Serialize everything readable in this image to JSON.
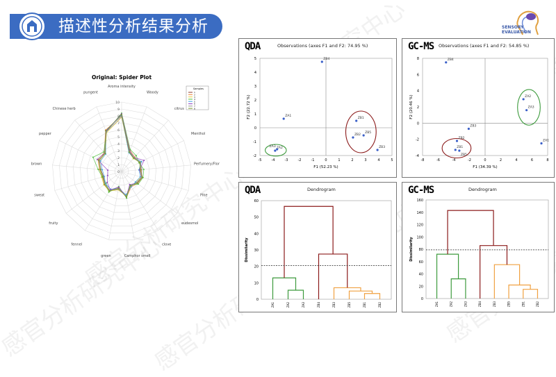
{
  "header": {
    "title": "描述性分析结果分析"
  },
  "brand": {
    "line1": "SENSORY",
    "line2": "EVALUATION"
  },
  "watermark": "感官分析研究中心",
  "colors": {
    "header": "#3b6cc2",
    "points": "#3a5fc8",
    "green": "#3c9a3c",
    "orange": "#f0a040",
    "darkred": "#8b1a1a"
  },
  "panels": {
    "qda_scatter": {
      "label": "QDA",
      "title": "Observations (axes F1 and F2: 74.95 %)"
    },
    "gcms_scatter": {
      "label": "GC-MS",
      "title": "Observations (axes F1 and F2: 54.85 %)"
    },
    "qda_dendro": {
      "label": "QDA",
      "title": "Dendrogram"
    },
    "gcms_dendro": {
      "label": "GC-MS",
      "title": "Dendrogram"
    }
  },
  "chart_data": [
    {
      "type": "radar",
      "title": "Original: Spider Plot",
      "rlim": [
        0,
        10
      ],
      "ticks": [
        0,
        1,
        2,
        3,
        4,
        5,
        6,
        7,
        8,
        9,
        10
      ],
      "axes": [
        "Aroma intensity",
        "Woody",
        "citrus",
        "Menthol",
        "Perfumery/Flor",
        "Pine",
        "eudesmol",
        "clove",
        "Camphor smell",
        "green",
        "fennel",
        "fruity",
        "sweat",
        "brown",
        "pepper",
        "Chinese herb",
        "pungent"
      ],
      "legend": {
        "title": "Samples",
        "placement": "top-right"
      },
      "series": [
        {
          "name": "1",
          "color": "#8b3a2a",
          "values": [
            8.2,
            3.1,
            2.6,
            3.0,
            2.6,
            3.0,
            2.7,
            2.4,
            3.6,
            2.6,
            3.2,
            3.0,
            2.7,
            3.0,
            3.6,
            3.6,
            6.2
          ]
        },
        {
          "name": "2",
          "color": "#f08030",
          "values": [
            8.0,
            3.3,
            2.8,
            2.9,
            2.8,
            3.1,
            2.9,
            2.6,
            3.8,
            2.4,
            3.4,
            3.1,
            2.9,
            3.2,
            3.8,
            3.7,
            6.4
          ]
        },
        {
          "name": "3",
          "color": "#e8d040",
          "values": [
            7.8,
            3.0,
            2.5,
            3.1,
            2.7,
            2.9,
            2.6,
            2.5,
            3.5,
            2.7,
            3.3,
            3.2,
            3.0,
            3.1,
            3.5,
            3.5,
            6.0
          ]
        },
        {
          "name": "4",
          "color": "#50c040",
          "values": [
            8.4,
            3.4,
            3.1,
            2.8,
            3.2,
            3.2,
            3.0,
            2.3,
            3.9,
            2.2,
            3.5,
            2.8,
            2.9,
            3.4,
            4.6,
            3.8,
            6.1
          ]
        },
        {
          "name": "5",
          "color": "#40a0e0",
          "values": [
            8.1,
            2.9,
            2.6,
            3.2,
            2.5,
            2.8,
            2.5,
            2.6,
            3.4,
            2.5,
            3.0,
            2.9,
            2.6,
            2.8,
            3.4,
            3.4,
            6.3
          ]
        },
        {
          "name": "6",
          "color": "#9040c0",
          "values": [
            8.3,
            3.2,
            2.7,
            3.6,
            2.6,
            3.0,
            2.8,
            2.2,
            3.7,
            2.3,
            3.1,
            2.6,
            2.1,
            2.0,
            3.9,
            3.6,
            6.2
          ]
        },
        {
          "name": "7",
          "color": "#909090",
          "values": [
            7.9,
            3.1,
            2.7,
            3.0,
            2.9,
            3.0,
            2.7,
            2.5,
            3.6,
            2.6,
            3.2,
            3.0,
            2.8,
            3.0,
            3.6,
            3.6,
            6.1
          ]
        },
        {
          "name": "8",
          "color": "#7a9a30",
          "values": [
            8.2,
            3.0,
            2.6,
            2.9,
            2.7,
            3.1,
            2.8,
            2.4,
            3.7,
            2.5,
            3.3,
            3.1,
            2.8,
            3.1,
            3.7,
            3.5,
            6.3
          ]
        }
      ]
    },
    {
      "type": "scatter",
      "panel": "qda_scatter",
      "xlabel": "F1 (52.23 %)",
      "ylabel": "F2 (22.72 %)",
      "xlim": [
        -5,
        5
      ],
      "ylim": [
        -2,
        5
      ],
      "xticks": [
        -5,
        -4,
        -3,
        -2,
        -1,
        0,
        1,
        2,
        3,
        4,
        5
      ],
      "yticks": [
        -2,
        -1,
        0,
        1,
        2,
        3,
        4,
        5
      ],
      "points": [
        {
          "label": "ZB4",
          "x": -0.3,
          "y": 4.75
        },
        {
          "label": "ZA1",
          "x": -3.2,
          "y": 0.65
        },
        {
          "label": "ZB1",
          "x": 2.3,
          "y": 0.5
        },
        {
          "label": "ZB2",
          "x": 2.05,
          "y": -0.7
        },
        {
          "label": "ZB5",
          "x": 2.85,
          "y": -0.55
        },
        {
          "label": "ZB3",
          "x": 3.9,
          "y": -1.6
        },
        {
          "label": "ZA2",
          "x": -3.85,
          "y": -1.65
        },
        {
          "label": "ZA3",
          "x": -3.7,
          "y": -1.55
        }
      ],
      "ellipses": [
        {
          "color": "green",
          "cx": -3.8,
          "cy": -1.62,
          "rx": 0.8,
          "ry": 0.42
        },
        {
          "color": "darkred",
          "cx": 2.65,
          "cy": -0.3,
          "rx": 1.15,
          "ry": 1.5
        }
      ]
    },
    {
      "type": "scatter",
      "panel": "gcms_scatter",
      "xlabel": "F1 (34.39 %)",
      "ylabel": "F2 (20.46 %)",
      "xlim": [
        -8,
        8
      ],
      "ylim": [
        -4,
        8
      ],
      "xticks": [
        -8,
        -6,
        -4,
        -2,
        0,
        2,
        4,
        6,
        8
      ],
      "yticks": [
        -4,
        -2,
        0,
        2,
        4,
        6,
        8
      ],
      "points": [
        {
          "label": "ZB4",
          "x": -5,
          "y": 7.5
        },
        {
          "label": "ZA2",
          "x": 4.9,
          "y": 2.95
        },
        {
          "label": "ZA3",
          "x": 5.3,
          "y": 1.6
        },
        {
          "label": "ZB3",
          "x": -2.1,
          "y": -0.7
        },
        {
          "label": "ZA1",
          "x": 7.2,
          "y": -2.5
        },
        {
          "label": "ZB2",
          "x": -3.6,
          "y": -2.2
        },
        {
          "label": "ZB1",
          "x": -3.8,
          "y": -3.3
        },
        {
          "label": "ZB5",
          "x": -3.3,
          "y": -3.4
        }
      ],
      "ellipses": [
        {
          "color": "green",
          "cx": 5.6,
          "cy": 1.95,
          "rx": 1.45,
          "ry": 2.2
        },
        {
          "color": "darkred",
          "cx": -3.65,
          "cy": -3.1,
          "rx": 1.85,
          "ry": 1.2
        }
      ]
    },
    {
      "type": "dendrogram",
      "panel": "qda_dendro",
      "ylabel": "Dissimilarity",
      "ylim": [
        0,
        60
      ],
      "yticks": [
        0,
        10,
        20,
        30,
        40,
        50,
        60
      ],
      "cut": 20.5,
      "leaves": [
        "ZA1",
        "ZA2",
        "ZA3",
        "ZB4",
        "ZB3",
        "ZB5",
        "ZB1",
        "ZB2"
      ],
      "merges": [
        {
          "id": "m1",
          "a": "ZB1",
          "b": "ZB2",
          "height": 3.5,
          "color": "orange"
        },
        {
          "id": "m2",
          "a": "ZB5",
          "b": "m1",
          "height": 5,
          "color": "orange"
        },
        {
          "id": "m3",
          "a": "ZB3",
          "b": "m2",
          "height": 7,
          "color": "orange"
        },
        {
          "id": "m4",
          "a": "ZA2",
          "b": "ZA3",
          "height": 5.5,
          "color": "green"
        },
        {
          "id": "m5",
          "a": "ZA1",
          "b": "m4",
          "height": 13,
          "color": "green"
        },
        {
          "id": "m6",
          "a": "ZB4",
          "b": "m3",
          "height": 27.5,
          "color": "darkred"
        },
        {
          "id": "m7",
          "a": "m5",
          "b": "m6",
          "height": 56.5,
          "color": "darkred"
        }
      ]
    },
    {
      "type": "dendrogram",
      "panel": "gcms_dendro",
      "ylabel": "Dissimilarity",
      "ylim": [
        0,
        160
      ],
      "yticks": [
        0,
        20,
        40,
        60,
        80,
        100,
        120,
        140,
        160
      ],
      "cut": 79,
      "leaves": [
        "ZA1",
        "ZA2",
        "ZA3",
        "ZB4",
        "ZB3",
        "ZB5",
        "ZB1",
        "ZB2"
      ],
      "merges": [
        {
          "id": "m1",
          "a": "ZB1",
          "b": "ZB2",
          "height": 15,
          "color": "orange"
        },
        {
          "id": "m2",
          "a": "ZB5",
          "b": "m1",
          "height": 22,
          "color": "orange"
        },
        {
          "id": "m3",
          "a": "ZB3",
          "b": "m2",
          "height": 55,
          "color": "orange"
        },
        {
          "id": "m4",
          "a": "ZA2",
          "b": "ZA3",
          "height": 32,
          "color": "green"
        },
        {
          "id": "m5",
          "a": "ZA1",
          "b": "m4",
          "height": 72,
          "color": "green"
        },
        {
          "id": "m6",
          "a": "ZB4",
          "b": "m3",
          "height": 86,
          "color": "darkred"
        },
        {
          "id": "m7",
          "a": "m5",
          "b": "m6",
          "height": 143,
          "color": "darkred"
        }
      ]
    }
  ]
}
